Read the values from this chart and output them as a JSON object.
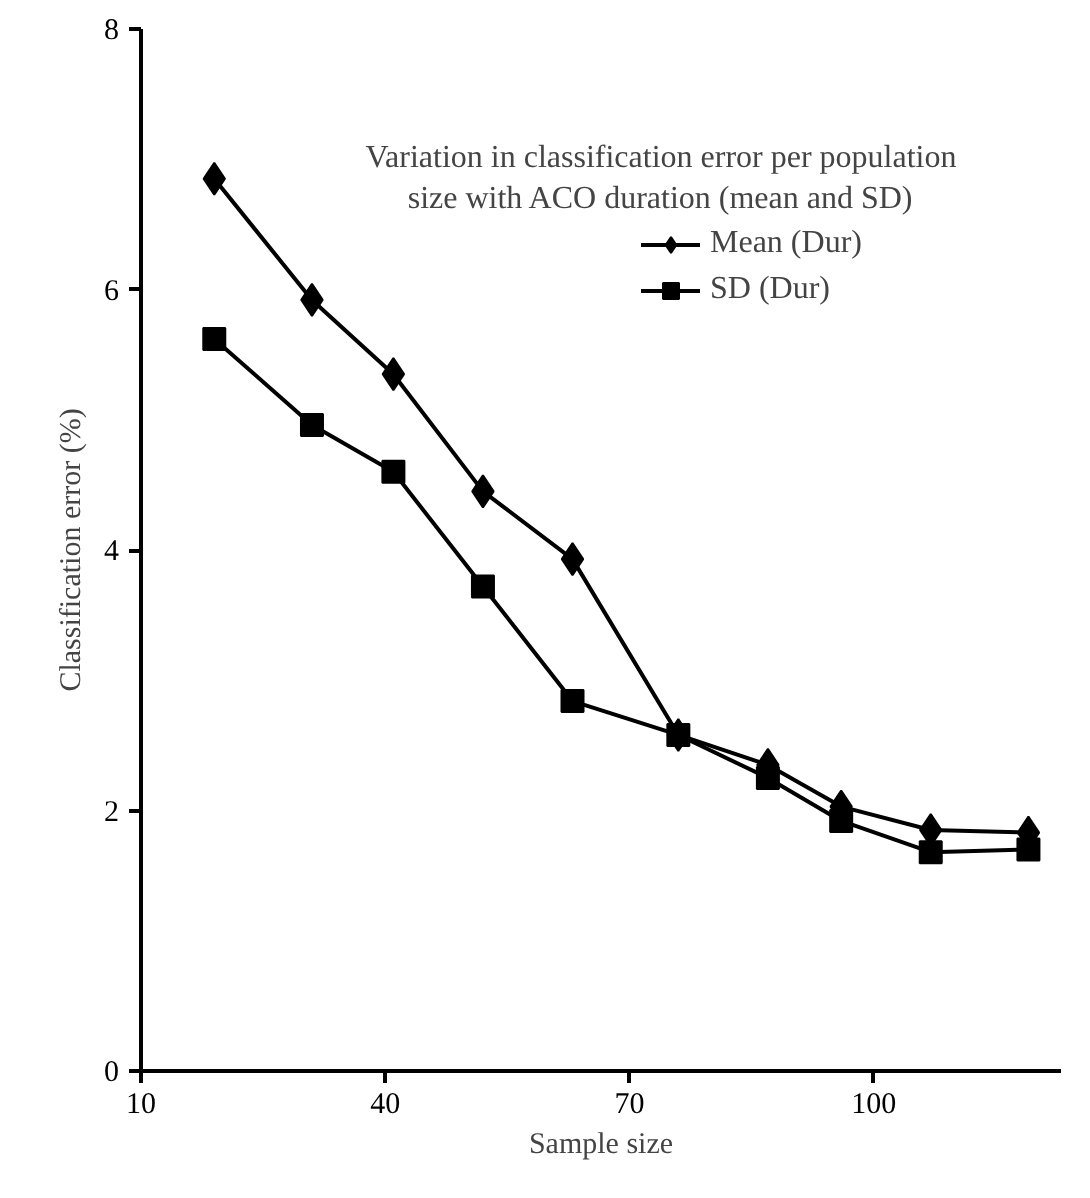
{
  "chart_data": {
    "type": "line",
    "title": "Variation in classification error per population size with ACO duration (mean and SD)",
    "xlabel": "Sample size",
    "ylabel": "Classification error (%)",
    "x": [
      19,
      31,
      41,
      52,
      63,
      76,
      87,
      96,
      107,
      119
    ],
    "series": [
      {
        "name": "Mean (Dur)",
        "color": "#000000",
        "marker": "diamond",
        "values": [
          6.85,
          5.92,
          5.35,
          4.45,
          3.93,
          2.58,
          2.35,
          2.03,
          1.85,
          1.83
        ]
      },
      {
        "name": "SD (Dur)",
        "color": "#000000",
        "marker": "square",
        "values": [
          5.62,
          4.96,
          4.6,
          3.72,
          2.84,
          2.58,
          2.25,
          1.92,
          1.68,
          1.7
        ]
      }
    ],
    "xlim": [
      10,
      123
    ],
    "ylim": [
      0,
      8
    ],
    "xticks": [
      10,
      40,
      70,
      100
    ],
    "yticks": [
      0,
      2,
      4,
      6,
      8
    ],
    "grid": false,
    "legend": "top right",
    "line_style": "solid"
  }
}
